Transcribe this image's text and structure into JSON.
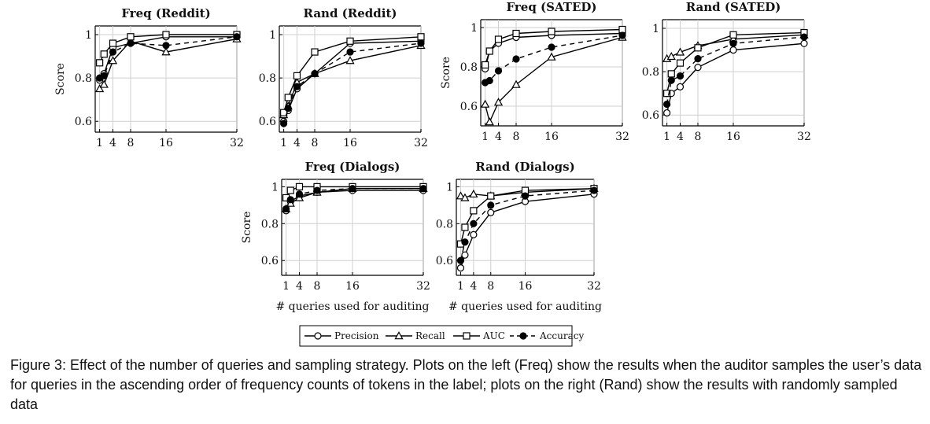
{
  "caption": "Figure 3: Effect of the number of queries and sampling strategy. Plots on the left (Freq) show the results when the auditor samples the user’s data for queries in the ascending order of frequency counts of tokens in the label; plots on the right (Rand) show the results with randomly sampled data",
  "legend": [
    "Precision",
    "Recall",
    "AUC",
    "Accuracy"
  ],
  "chart_data": [
    {
      "type": "line",
      "title": "Freq (Reddit)",
      "ylabel": "Score",
      "xlabel": "",
      "x": [
        1,
        2,
        4,
        8,
        16,
        32
      ],
      "xticks": [
        "1",
        "4",
        "8",
        "16",
        "32"
      ],
      "yticks": [
        "0.6",
        "0.8",
        "1"
      ],
      "xlim": [
        0,
        32
      ],
      "ylim": [
        0.55,
        1.04
      ],
      "series": [
        {
          "name": "Precision",
          "values": [
            0.79,
            0.82,
            0.94,
            0.96,
            0.99,
            0.99
          ]
        },
        {
          "name": "Recall",
          "values": [
            0.75,
            0.77,
            0.88,
            0.97,
            0.92,
            0.98
          ]
        },
        {
          "name": "AUC",
          "values": [
            0.87,
            0.91,
            0.96,
            0.99,
            1.0,
            1.0
          ]
        },
        {
          "name": "Accuracy",
          "values": [
            0.8,
            0.81,
            0.92,
            0.96,
            0.95,
            0.99
          ]
        }
      ]
    },
    {
      "type": "line",
      "title": "Rand (Reddit)",
      "ylabel": "",
      "xlabel": "",
      "x": [
        1,
        2,
        4,
        8,
        16,
        32
      ],
      "xticks": [
        "1",
        "4",
        "8",
        "16",
        "32"
      ],
      "yticks": [
        "0.6",
        "0.8",
        "1"
      ],
      "xlim": [
        0,
        32
      ],
      "ylim": [
        0.55,
        1.04
      ],
      "series": [
        {
          "name": "Precision",
          "values": [
            0.6,
            0.65,
            0.75,
            0.82,
            0.96,
            0.97
          ]
        },
        {
          "name": "Recall",
          "values": [
            0.63,
            0.67,
            0.78,
            0.82,
            0.88,
            0.95
          ]
        },
        {
          "name": "AUC",
          "values": [
            0.64,
            0.71,
            0.81,
            0.92,
            0.97,
            0.99
          ]
        },
        {
          "name": "Accuracy",
          "values": [
            0.59,
            0.66,
            0.76,
            0.82,
            0.92,
            0.96
          ]
        }
      ]
    },
    {
      "type": "line",
      "title": "Freq (SATED)",
      "ylabel": "Score",
      "xlabel": "",
      "x": [
        1,
        2,
        4,
        8,
        16,
        32
      ],
      "xticks": [
        "1",
        "4",
        "8",
        "16",
        "32"
      ],
      "yticks": [
        "0.6",
        "0.8",
        "1"
      ],
      "xlim": [
        0,
        32
      ],
      "ylim": [
        0.5,
        1.04
      ],
      "series": [
        {
          "name": "Precision",
          "values": [
            0.79,
            0.88,
            0.92,
            0.95,
            0.96,
            0.97
          ]
        },
        {
          "name": "Recall",
          "values": [
            0.61,
            0.52,
            0.62,
            0.71,
            0.85,
            0.95
          ]
        },
        {
          "name": "AUC",
          "values": [
            0.81,
            0.88,
            0.94,
            0.97,
            0.98,
            0.99
          ]
        },
        {
          "name": "Accuracy",
          "values": [
            0.72,
            0.73,
            0.78,
            0.84,
            0.9,
            0.96
          ]
        }
      ]
    },
    {
      "type": "line",
      "title": "Rand (SATED)",
      "ylabel": "",
      "xlabel": "",
      "x": [
        1,
        2,
        4,
        8,
        16,
        32
      ],
      "xticks": [
        "1",
        "4",
        "8",
        "16",
        "32"
      ],
      "yticks": [
        "0.6",
        "0.8",
        "1"
      ],
      "xlim": [
        0,
        32
      ],
      "ylim": [
        0.55,
        1.04
      ],
      "series": [
        {
          "name": "Precision",
          "values": [
            0.61,
            0.7,
            0.73,
            0.82,
            0.9,
            0.93
          ]
        },
        {
          "name": "Recall",
          "values": [
            0.86,
            0.87,
            0.89,
            0.92,
            0.95,
            0.97
          ]
        },
        {
          "name": "AUC",
          "values": [
            0.7,
            0.79,
            0.84,
            0.91,
            0.97,
            0.98
          ]
        },
        {
          "name": "Accuracy",
          "values": [
            0.65,
            0.76,
            0.78,
            0.86,
            0.93,
            0.96
          ]
        }
      ]
    },
    {
      "type": "line",
      "title": "Freq (Dialogs)",
      "ylabel": "Score",
      "xlabel": "# queries used for auditing",
      "x": [
        1,
        2,
        4,
        8,
        16,
        32
      ],
      "xticks": [
        "1",
        "4",
        "8",
        "16",
        "32"
      ],
      "yticks": [
        "0.6",
        "0.8",
        "1"
      ],
      "xlim": [
        0,
        32
      ],
      "ylim": [
        0.52,
        1.04
      ],
      "series": [
        {
          "name": "Precision",
          "values": [
            0.87,
            0.92,
            0.95,
            0.97,
            0.98,
            0.98
          ]
        },
        {
          "name": "Recall",
          "values": [
            0.88,
            0.91,
            0.94,
            0.97,
            0.99,
            0.99
          ]
        },
        {
          "name": "AUC",
          "values": [
            0.94,
            0.98,
            1.0,
            1.0,
            1.0,
            1.0
          ]
        },
        {
          "name": "Accuracy",
          "values": [
            0.88,
            0.93,
            0.96,
            0.98,
            0.99,
            0.99
          ]
        }
      ]
    },
    {
      "type": "line",
      "title": "Rand (Dialogs)",
      "ylabel": "",
      "xlabel": "# queries used for auditing",
      "x": [
        1,
        2,
        4,
        8,
        16,
        32
      ],
      "xticks": [
        "1",
        "4",
        "8",
        "16",
        "32"
      ],
      "yticks": [
        "0.6",
        "0.8",
        "1"
      ],
      "xlim": [
        0,
        32
      ],
      "ylim": [
        0.52,
        1.04
      ],
      "series": [
        {
          "name": "Precision",
          "values": [
            0.56,
            0.63,
            0.74,
            0.86,
            0.92,
            0.96
          ]
        },
        {
          "name": "Recall",
          "values": [
            0.95,
            0.94,
            0.96,
            0.95,
            0.97,
            0.99
          ]
        },
        {
          "name": "AUC",
          "values": [
            0.69,
            0.78,
            0.87,
            0.95,
            0.98,
            0.99
          ]
        },
        {
          "name": "Accuracy",
          "values": [
            0.6,
            0.7,
            0.8,
            0.9,
            0.95,
            0.98
          ]
        }
      ]
    }
  ]
}
